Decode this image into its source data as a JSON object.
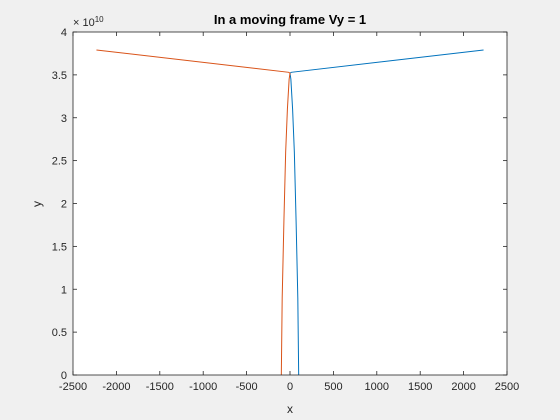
{
  "chart_data": {
    "type": "line",
    "title": "In a moving frame Vy = 1",
    "xlabel": "x",
    "ylabel": "y",
    "xlim": [
      -2500,
      2500
    ],
    "ylim": [
      0,
      4
    ],
    "y_exponent_label": "× 10",
    "y_exponent_power": "10",
    "grid": false,
    "legend": "none",
    "x_ticks": [
      "-2500",
      "-2000",
      "-1500",
      "-1000",
      "-500",
      "0",
      "500",
      "1000",
      "1500",
      "2000",
      "2500"
    ],
    "y_ticks": [
      "0",
      "0.5",
      "1",
      "1.5",
      "2",
      "2.5",
      "3",
      "3.5",
      "4"
    ],
    "series": [
      {
        "color": "#0072bd",
        "points": [
          [
            100,
            0
          ],
          [
            90,
            0.9
          ],
          [
            70,
            1.8
          ],
          [
            50,
            2.6
          ],
          [
            30,
            3.1
          ],
          [
            10,
            3.45
          ],
          [
            0,
            3.52
          ],
          [
            15,
            3.53
          ],
          [
            2230,
            3.79
          ]
        ]
      },
      {
        "color": "#d95319",
        "points": [
          [
            -100,
            0
          ],
          [
            -90,
            0.9
          ],
          [
            -70,
            1.8
          ],
          [
            -50,
            2.6
          ],
          [
            -30,
            3.1
          ],
          [
            -10,
            3.45
          ],
          [
            0,
            3.52
          ],
          [
            -15,
            3.53
          ],
          [
            -2230,
            3.79
          ]
        ]
      }
    ]
  }
}
